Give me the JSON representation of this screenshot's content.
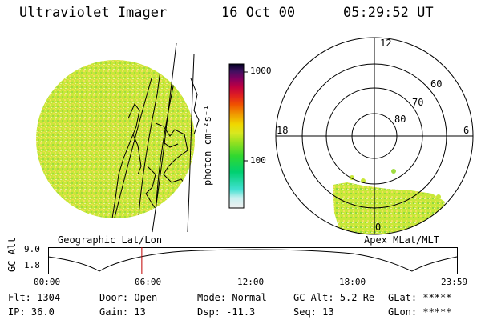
{
  "header": {
    "instrument": "Ultraviolet Imager",
    "date": "16 Oct 00",
    "time": "05:29:52 UT"
  },
  "colorbar": {
    "unit_label": "photon cm⁻²s⁻¹",
    "tick_top": "1000",
    "tick_mid": "100",
    "colors": [
      "#f0f0f0",
      "#c8f0f0",
      "#40e0d0",
      "#00d070",
      "#30d830",
      "#90e020",
      "#d8e820",
      "#f0d800",
      "#f09000",
      "#f05000",
      "#e02020",
      "#c00040",
      "#800060",
      "#401060",
      "#000020"
    ]
  },
  "polar_plot": {
    "lat_labels": [
      "60",
      "70",
      "80"
    ],
    "mlt_labels": {
      "top": "12",
      "left": "18",
      "right": "6",
      "bottom": "0"
    }
  },
  "panel_labels": {
    "left": "Geographic Lat/Lon",
    "right": "Apex MLat/MLT"
  },
  "gc_alt_plot": {
    "y_label": "GC Alt",
    "y_ticks": [
      "9.0",
      "1.8"
    ],
    "x_ticks": [
      "00:00",
      "06:00",
      "12:00",
      "18:00",
      "23:59"
    ],
    "current_time_hours": 5.5
  },
  "footer": {
    "row1": [
      {
        "label": "Flt:",
        "value": "1304"
      },
      {
        "label": "Door:",
        "value": "Open"
      },
      {
        "label": "Mode:",
        "value": "Normal"
      },
      {
        "label": "GC Alt:",
        "value": "5.2 Re"
      },
      {
        "label": "GLat:",
        "value": "*****"
      }
    ],
    "row2": [
      {
        "label": "IP:",
        "value": "36.0"
      },
      {
        "label": "Gain:",
        "value": "13"
      },
      {
        "label": "Dsp:",
        "value": "-11.3"
      },
      {
        "label": "Seq:",
        "value": "13"
      },
      {
        "label": "GLon:",
        "value": "*****"
      }
    ]
  },
  "colors": {
    "disk_base": "#c8e838",
    "disk_speckle": "#f0e060",
    "disk_speckle2": "#a0dc40",
    "time_marker": "#c00000"
  }
}
